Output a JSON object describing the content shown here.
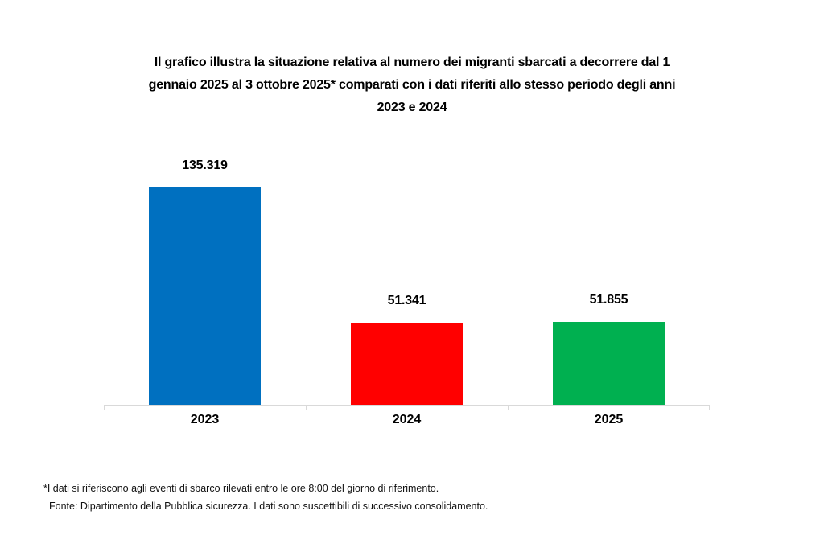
{
  "title": {
    "lines": [
      "Il grafico illustra la situazione relativa al numero dei migranti sbarcati a decorrere dal 1",
      "gennaio 2025 al 3 ottobre 2025* comparati con i dati riferiti allo stesso periodo degli anni",
      "2023 e 2024"
    ]
  },
  "footnotes": {
    "line1": "*I dati si riferiscono agli eventi di sbarco rilevati entro le ore 8:00 del giorno di riferimento.",
    "line2": "Fonte: Dipartimento della Pubblica sicurezza. I dati sono suscettibili di successivo consolidamento."
  },
  "chart_data": {
    "type": "bar",
    "title": "Il grafico illustra la situazione relativa al numero dei migranti sbarcati a decorrere dal 1 gennaio 2025 al 3 ottobre 2025* comparati con i dati riferiti allo stesso periodo degli anni 2023 e 2024",
    "categories": [
      "2023",
      "2024",
      "2025"
    ],
    "values": [
      135319,
      51341,
      51855
    ],
    "value_labels": [
      "135.319",
      "51.341",
      "51.855"
    ],
    "bar_colors": [
      "#0070C0",
      "#FF0000",
      "#00B050"
    ],
    "xlabel": "",
    "ylabel": "",
    "ylim": [
      0,
      135319
    ],
    "grid": false,
    "legend": "none",
    "axis_line_color": "#D9D9D9",
    "value_label_position": "above-bar",
    "background_color": "#FFFFFF"
  }
}
